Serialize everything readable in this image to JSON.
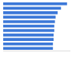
{
  "chart_data": {
    "type": "bar",
    "orientation": "horizontal",
    "categories": [
      null,
      null,
      null,
      null,
      null,
      null,
      null,
      null,
      null,
      null,
      null
    ],
    "values": [
      95,
      86,
      81,
      78,
      77,
      76,
      76,
      75,
      75,
      74,
      74
    ],
    "color": "#3c78d8",
    "xlim": [
      0,
      100
    ],
    "grid": false,
    "tick_labels": false
  }
}
